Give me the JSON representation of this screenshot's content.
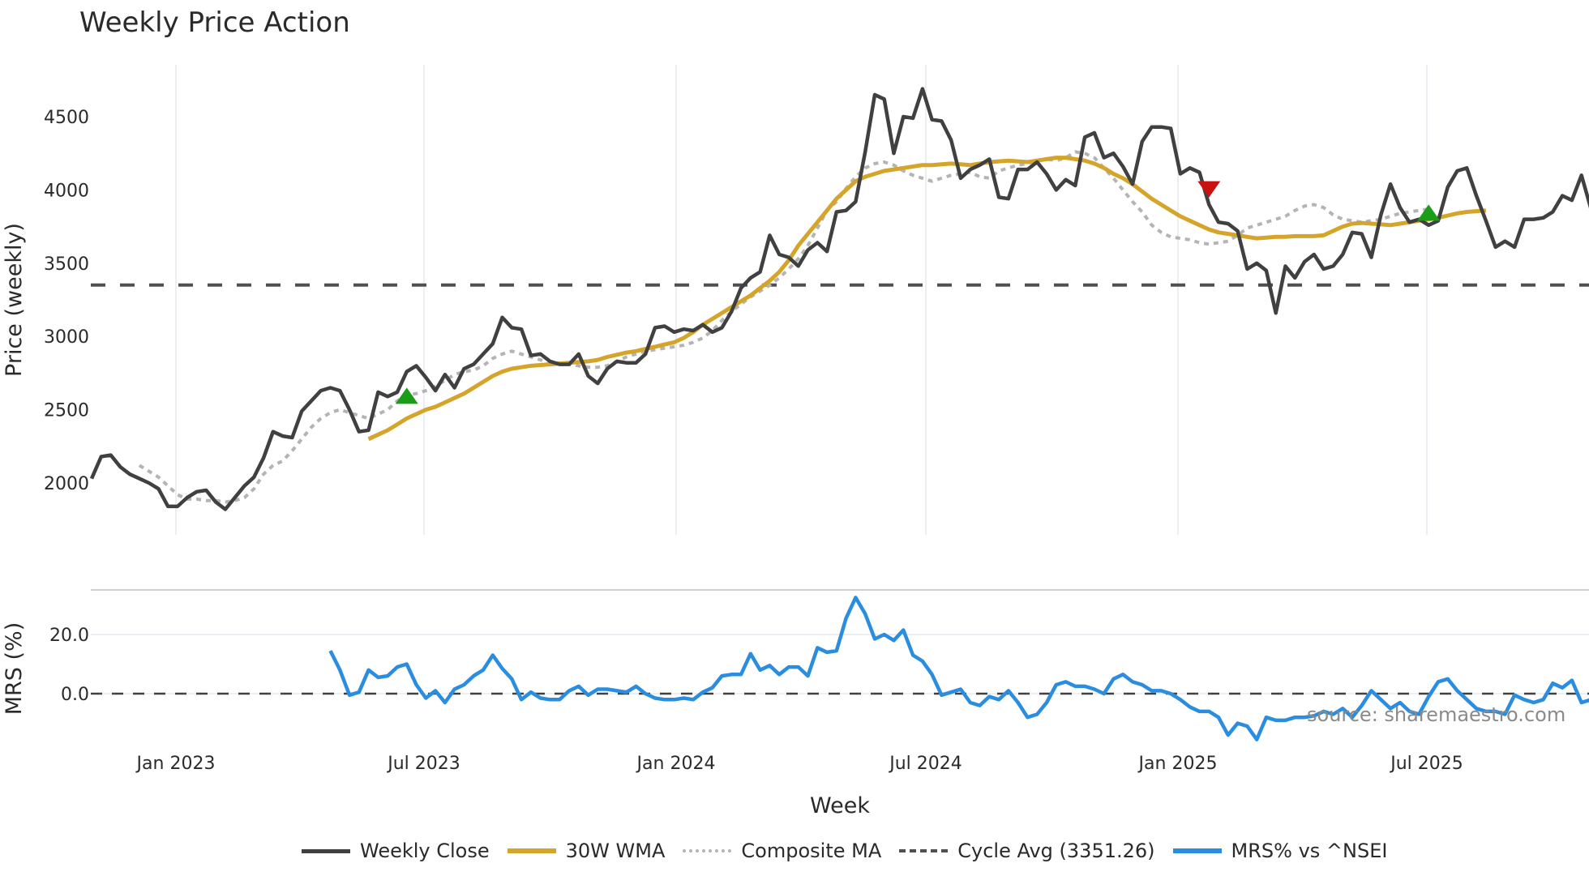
{
  "title": "Weekly Price Action",
  "watermark": "source: sharemaestro.com",
  "colors": {
    "close": "#404040",
    "wma": "#d4a52a",
    "composite": "#b4b4b4",
    "cycle": "#505050",
    "mrs": "#2b8de0",
    "buy_marker": "#1a9e1a",
    "sell_marker": "#cc1111",
    "grid": "#eceef3"
  },
  "legend": [
    {
      "key": "close",
      "label": "Weekly Close",
      "style": "solid"
    },
    {
      "key": "wma",
      "label": "30W WMA",
      "style": "solid"
    },
    {
      "key": "composite",
      "label": "Composite MA",
      "style": "dotted"
    },
    {
      "key": "cycle",
      "label": "Cycle Avg (3351.26)",
      "style": "dashed"
    },
    {
      "key": "mrs",
      "label": "MRS% vs ^NSEI",
      "style": "solid"
    }
  ],
  "chart_data": [
    {
      "type": "line",
      "title": "Weekly Price Action",
      "xlabel": "Week",
      "ylabel": "Price (weekly)",
      "ylim": [
        1700,
        4800
      ],
      "yticks": [
        2000,
        2500,
        3000,
        3500,
        4000,
        4500
      ],
      "xticks": [
        "Jan 2023",
        "Jul 2023",
        "Jan 2024",
        "Jul 2024",
        "Jan 2025",
        "Jul 2025"
      ],
      "grid": "vertical",
      "legend_position": "bottom",
      "cycle_avg": 3351.26,
      "series": [
        {
          "name": "Weekly Close",
          "start_index": 0,
          "values": [
            2030,
            2180,
            2190,
            2110,
            2060,
            2030,
            2000,
            1960,
            1840,
            1840,
            1900,
            1940,
            1950,
            1870,
            1820,
            1900,
            1980,
            2040,
            2170,
            2350,
            2320,
            2310,
            2490,
            2560,
            2630,
            2650,
            2630,
            2500,
            2350,
            2360,
            2620,
            2590,
            2620,
            2760,
            2800,
            2720,
            2630,
            2740,
            2650,
            2780,
            2810,
            2880,
            2950,
            3130,
            3060,
            3050,
            2870,
            2880,
            2830,
            2810,
            2810,
            2880,
            2730,
            2680,
            2780,
            2830,
            2820,
            2820,
            2880,
            3060,
            3070,
            3030,
            3050,
            3040,
            3080,
            3030,
            3060,
            3170,
            3330,
            3400,
            3440,
            3690,
            3560,
            3540,
            3480,
            3590,
            3640,
            3580,
            3850,
            3860,
            3920,
            4260,
            4650,
            4620,
            4250,
            4500,
            4490,
            4690,
            4480,
            4470,
            4340,
            4080,
            4140,
            4170,
            4210,
            3950,
            3940,
            4140,
            4140,
            4190,
            4110,
            4000,
            4070,
            4030,
            4360,
            4390,
            4220,
            4250,
            4160,
            4040,
            4330,
            4430,
            4430,
            4420,
            4110,
            4150,
            4120,
            3900,
            3780,
            3770,
            3720,
            3460,
            3500,
            3450,
            3160,
            3480,
            3400,
            3510,
            3560,
            3460,
            3480,
            3560,
            3710,
            3700,
            3540,
            3830,
            4040,
            3880,
            3780,
            3800,
            3760,
            3790,
            4020,
            4130,
            4150,
            3960,
            3790,
            3610,
            3650,
            3610,
            3800,
            3800,
            3810,
            3850,
            3960,
            3930,
            4100,
            3870,
            3930,
            3910
          ]
        },
        {
          "name": "30W WMA",
          "start_index": 29,
          "values": [
            2300,
            2330,
            2360,
            2400,
            2440,
            2470,
            2500,
            2520,
            2550,
            2580,
            2610,
            2650,
            2690,
            2730,
            2760,
            2780,
            2790,
            2800,
            2805,
            2810,
            2815,
            2820,
            2825,
            2830,
            2840,
            2860,
            2875,
            2890,
            2900,
            2915,
            2930,
            2945,
            2960,
            2990,
            3030,
            3080,
            3120,
            3160,
            3200,
            3240,
            3280,
            3330,
            3380,
            3440,
            3520,
            3620,
            3700,
            3780,
            3860,
            3940,
            4000,
            4060,
            4090,
            4110,
            4130,
            4140,
            4150,
            4160,
            4170,
            4170,
            4175,
            4180,
            4175,
            4170,
            4180,
            4190,
            4195,
            4200,
            4195,
            4190,
            4200,
            4210,
            4220,
            4220,
            4210,
            4200,
            4180,
            4150,
            4110,
            4080,
            4040,
            3990,
            3940,
            3900,
            3860,
            3820,
            3790,
            3760,
            3730,
            3710,
            3700,
            3690,
            3680,
            3670,
            3675,
            3680,
            3680,
            3685,
            3685,
            3685,
            3690,
            3720,
            3750,
            3770,
            3775,
            3770,
            3765,
            3760,
            3770,
            3780,
            3790,
            3800,
            3810,
            3825,
            3840,
            3850,
            3855,
            3860
          ]
        },
        {
          "name": "Composite MA",
          "start_index": 5,
          "values": [
            2120,
            2080,
            2040,
            1980,
            1920,
            1890,
            1890,
            1880,
            1880,
            1870,
            1880,
            1900,
            1960,
            2060,
            2120,
            2150,
            2220,
            2300,
            2380,
            2440,
            2480,
            2500,
            2480,
            2460,
            2440,
            2470,
            2500,
            2560,
            2600,
            2610,
            2630,
            2660,
            2700,
            2740,
            2760,
            2770,
            2800,
            2850,
            2880,
            2900,
            2880,
            2860,
            2840,
            2820,
            2820,
            2810,
            2800,
            2790,
            2790,
            2800,
            2830,
            2860,
            2880,
            2900,
            2910,
            2920,
            2930,
            2940,
            2960,
            2990,
            3040,
            3110,
            3170,
            3220,
            3270,
            3310,
            3350,
            3400,
            3460,
            3530,
            3620,
            3740,
            3860,
            3920,
            4010,
            4090,
            4150,
            4180,
            4190,
            4170,
            4130,
            4100,
            4080,
            4060,
            4080,
            4100,
            4110,
            4120,
            4090,
            4080,
            4130,
            4150,
            4170,
            4180,
            4200,
            4210,
            4200,
            4220,
            4260,
            4250,
            4220,
            4150,
            4080,
            4000,
            3920,
            3850,
            3760,
            3710,
            3680,
            3670,
            3660,
            3640,
            3630,
            3640,
            3650,
            3690,
            3740,
            3760,
            3780,
            3800,
            3820,
            3860,
            3890,
            3900,
            3880,
            3830,
            3800,
            3790,
            3780,
            3790,
            3800,
            3820,
            3840,
            3850,
            3860,
            3870
          ]
        }
      ],
      "markers": [
        {
          "type": "buy",
          "shape": "triangle-up",
          "week_index": 33,
          "value": 2590
        },
        {
          "type": "sell",
          "shape": "triangle-down",
          "week_index": 117,
          "value": 4010
        },
        {
          "type": "buy",
          "shape": "triangle-up",
          "week_index": 140,
          "value": 3840
        }
      ]
    },
    {
      "type": "line",
      "xlabel": "Week",
      "ylabel": "MRS (%)",
      "yticks": [
        0.0,
        20.0
      ],
      "ylim": [
        -17,
        35
      ],
      "zero_line": true,
      "series": [
        {
          "name": "MRS% vs ^NSEI",
          "start_index": 25,
          "values": [
            14.5,
            8,
            -0.5,
            0.5,
            8,
            5.5,
            6,
            9,
            10,
            3,
            -1.5,
            1,
            -3,
            1.5,
            3,
            6,
            8,
            13,
            8.5,
            5,
            -2,
            0.5,
            -1.5,
            -2,
            -2,
            1,
            2.5,
            -0.5,
            1.5,
            1.5,
            1,
            0.5,
            2.5,
            0,
            -1.5,
            -2,
            -2,
            -1.5,
            -2,
            0.5,
            2,
            6,
            6.5,
            6.5,
            13.5,
            8,
            9.5,
            6.5,
            9,
            9,
            6,
            15.5,
            14,
            14.5,
            25.5,
            32.5,
            27,
            18.5,
            20,
            18,
            21.5,
            13,
            11,
            6.5,
            -0.5,
            0.5,
            1.5,
            -3,
            -4,
            -1,
            -2,
            1,
            -3,
            -8,
            -7,
            -3,
            3,
            4,
            2.5,
            2.5,
            1.5,
            0,
            5,
            6.5,
            4,
            3,
            1,
            1,
            0,
            -2,
            -4.5,
            -6,
            -6,
            -8,
            -14,
            -10,
            -11,
            -15.5,
            -8,
            -9,
            -9,
            -8,
            -8,
            -7.5,
            -6,
            -7,
            -5,
            -8,
            -4,
            1,
            -2,
            -5,
            -3,
            -6,
            -7,
            -1,
            4,
            5,
            1,
            -2,
            -5,
            -6,
            -6,
            -7,
            -0.5,
            -2,
            -3,
            -2,
            3.5,
            2,
            4.5,
            -3,
            -2,
            -2.5
          ]
        }
      ]
    }
  ]
}
